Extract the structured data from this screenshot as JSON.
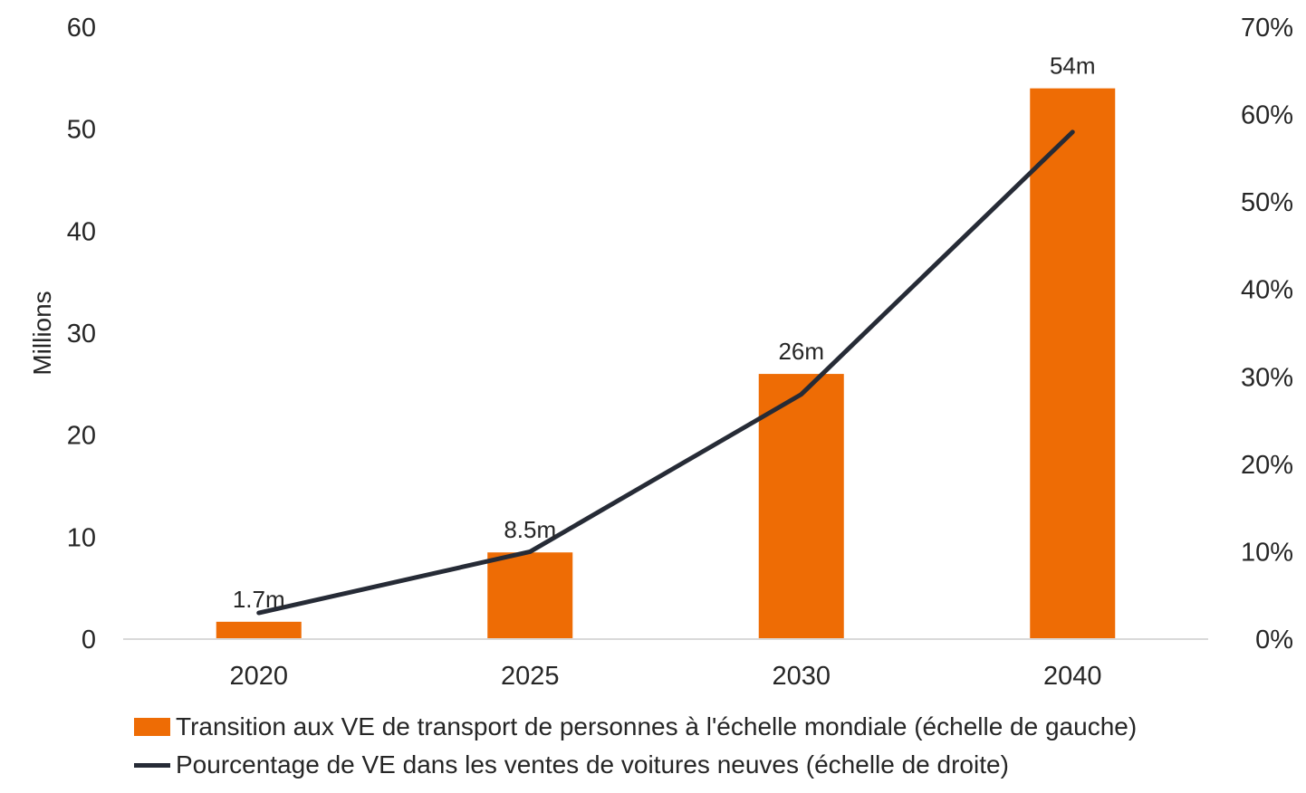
{
  "chart_data": {
    "type": "bar",
    "categories": [
      "2020",
      "2025",
      "2030",
      "2040"
    ],
    "series": [
      {
        "name": "Transition aux VE de transport de personnes à l'échelle mondiale (échelle de gauche)",
        "type": "bar",
        "axis": "left",
        "values": [
          1.7,
          8.5,
          26,
          54
        ],
        "data_labels": [
          "1.7m",
          "8.5m",
          "26m",
          "54m"
        ],
        "color": "#EE6C05"
      },
      {
        "name": "Pourcentage de VE dans les ventes de voitures neuves (échelle de droite)",
        "type": "line",
        "axis": "right",
        "values": [
          3,
          10,
          28,
          58
        ],
        "color": "#262B36"
      }
    ],
    "ylabel": "Millions",
    "ylim": [
      0,
      60
    ],
    "yticks": [
      "0",
      "10",
      "20",
      "30",
      "40",
      "50",
      "60"
    ],
    "y2lim": [
      0,
      70
    ],
    "y2ticks": [
      "0%",
      "10%",
      "20%",
      "30%",
      "40%",
      "50%",
      "60%",
      "70%"
    ],
    "grid": false,
    "legend_position": "bottom"
  }
}
